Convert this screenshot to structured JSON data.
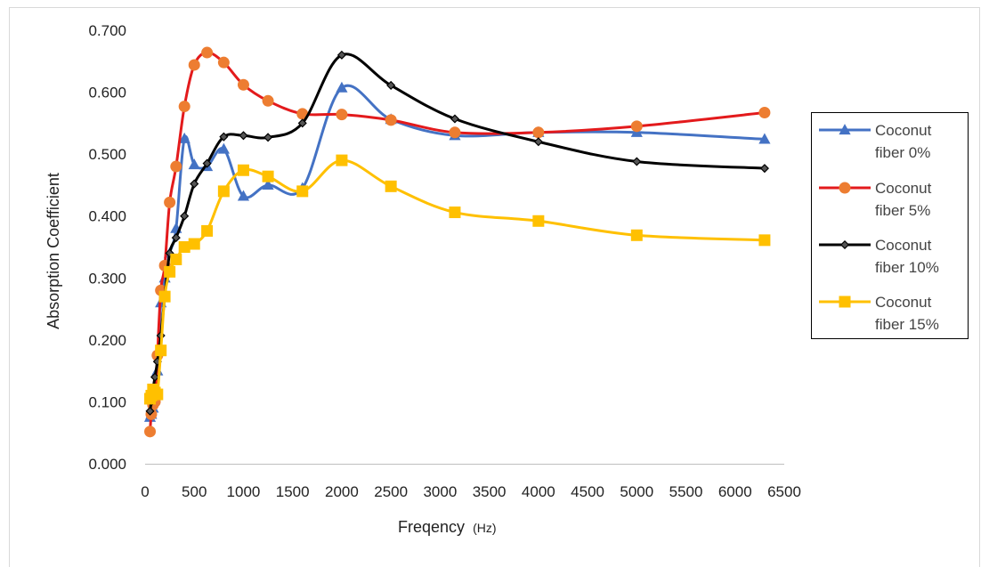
{
  "chart_data": {
    "type": "line",
    "xlabel": "Freqency",
    "xlabel_unit": "(Hz)",
    "ylabel": "Absorption Coefficient",
    "xlim": [
      0,
      6500
    ],
    "ylim": [
      0,
      0.7
    ],
    "x_ticks": [
      "0",
      "500",
      "1000",
      "1500",
      "2000",
      "2500",
      "3000",
      "3500",
      "4000",
      "4500",
      "5000",
      "5500",
      "6000",
      "6500"
    ],
    "y_ticks": [
      "0.000",
      "0.100",
      "0.200",
      "0.300",
      "0.400",
      "0.500",
      "0.600",
      "0.700"
    ],
    "grid": false,
    "legend_position": "right",
    "x": [
      50,
      63,
      80,
      100,
      125,
      160,
      200,
      250,
      315,
      400,
      500,
      630,
      800,
      1000,
      1250,
      1600,
      2000,
      2500,
      3150,
      4000,
      5000,
      6300
    ],
    "series": [
      {
        "name": "Coconut fiber 0%",
        "color": "#4472C4",
        "marker": "triangle",
        "values": [
          0.075,
          0.08,
          0.09,
          0.11,
          0.15,
          0.26,
          0.3,
          0.34,
          0.38,
          0.525,
          0.483,
          0.48,
          0.508,
          0.432,
          0.45,
          0.445,
          0.607,
          0.556,
          0.53,
          0.535,
          0.535,
          0.524
        ]
      },
      {
        "name": "Coconut fiber 5%",
        "color": "#E31A1C",
        "marker_color": "#ED7D31",
        "marker": "circle",
        "values": [
          0.052,
          0.08,
          0.095,
          0.1,
          0.175,
          0.28,
          0.32,
          0.422,
          0.48,
          0.577,
          0.644,
          0.664,
          0.648,
          0.612,
          0.586,
          0.565,
          0.564,
          0.555,
          0.535,
          0.535,
          0.545,
          0.567
        ]
      },
      {
        "name": "Coconut fiber 10%",
        "color": "#000000",
        "marker": "diamond",
        "values": [
          0.085,
          0.1,
          0.12,
          0.14,
          0.165,
          0.207,
          0.27,
          0.34,
          0.365,
          0.4,
          0.452,
          0.485,
          0.528,
          0.53,
          0.527,
          0.55,
          0.66,
          0.611,
          0.557,
          0.52,
          0.488,
          0.477
        ]
      },
      {
        "name": "Coconut fiber 15%",
        "color": "#FFC000",
        "marker": "square",
        "values": [
          0.105,
          0.11,
          0.12,
          0.115,
          0.112,
          0.183,
          0.27,
          0.31,
          0.33,
          0.35,
          0.355,
          0.376,
          0.44,
          0.474,
          0.464,
          0.44,
          0.49,
          0.448,
          0.406,
          0.392,
          0.369,
          0.361
        ]
      }
    ]
  },
  "legend": {
    "items": [
      {
        "line1": "Coconut",
        "line2": "fiber 0%"
      },
      {
        "line1": "Coconut",
        "line2": "fiber 5%"
      },
      {
        "line1": "Coconut",
        "line2": "fiber 10%"
      },
      {
        "line1": "Coconut",
        "line2": "fiber 15%"
      }
    ]
  }
}
